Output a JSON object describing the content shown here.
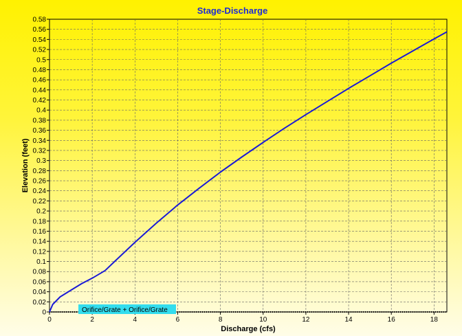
{
  "chart_data": {
    "type": "line",
    "title": "Stage-Discharge",
    "xlabel": "Discharge  (cfs)",
    "ylabel": "Elevation  (feet)",
    "xlim": [
      0,
      18.6
    ],
    "ylim": [
      0,
      0.58
    ],
    "xticks": [
      0,
      2,
      4,
      6,
      8,
      10,
      12,
      14,
      16,
      18
    ],
    "yticks": [
      0,
      0.02,
      0.04,
      0.06,
      0.08,
      0.1,
      0.12,
      0.14,
      0.16,
      0.18,
      0.2,
      0.22,
      0.24,
      0.26,
      0.28,
      0.3,
      0.32,
      0.34,
      0.36,
      0.38,
      0.4,
      0.42,
      0.44,
      0.46,
      0.48,
      0.5,
      0.52,
      0.54,
      0.56,
      0.58
    ],
    "grid": true,
    "legend_position": "bottom-left",
    "series": [
      {
        "name": "Orifice/Grate + Orifice/Grate",
        "color": "#1a1ad6",
        "x": [
          0,
          0.15,
          0.5,
          1.0,
          1.5,
          2.0,
          2.6,
          3.0,
          4.0,
          5.0,
          6.0,
          7.0,
          8.0,
          9.0,
          10.0,
          11.0,
          12.0,
          13.0,
          14.0,
          15.0,
          16.0,
          17.0,
          18.0,
          18.6
        ],
        "y": [
          0,
          0.015,
          0.03,
          0.043,
          0.056,
          0.067,
          0.082,
          0.098,
          0.138,
          0.176,
          0.212,
          0.245,
          0.277,
          0.307,
          0.336,
          0.364,
          0.391,
          0.417,
          0.443,
          0.468,
          0.493,
          0.517,
          0.541,
          0.555
        ]
      }
    ]
  }
}
